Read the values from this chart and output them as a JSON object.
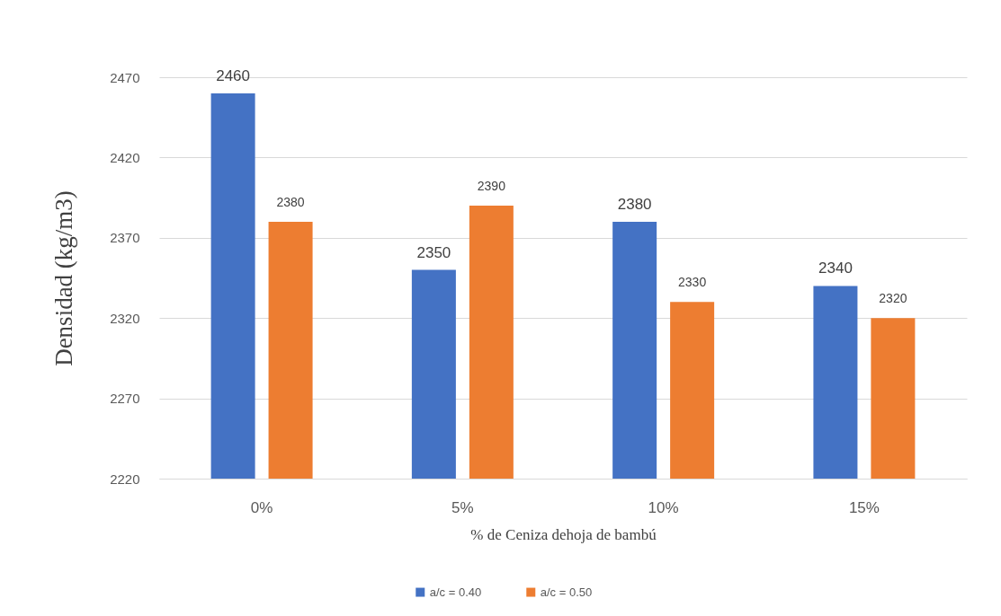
{
  "chart_data": {
    "type": "bar",
    "xlabel": "% de Ceniza  dehoja de bambú",
    "ylabel": "Densidad (kg/m3)",
    "categories": [
      "0%",
      "5%",
      "10%",
      "15%"
    ],
    "series": [
      {
        "name": "a/c = 0.40",
        "color": "#4472c4",
        "values": [
          2460,
          2350,
          2380,
          2340
        ]
      },
      {
        "name": "a/c = 0.50",
        "color": "#ed7d31",
        "values": [
          2380,
          2390,
          2330,
          2320
        ]
      }
    ],
    "ylim": [
      2220,
      2470
    ],
    "yticks": [
      2220,
      2270,
      2320,
      2370,
      2420,
      2470
    ],
    "grid": "y",
    "legend": "bottom",
    "data_labels": true
  }
}
